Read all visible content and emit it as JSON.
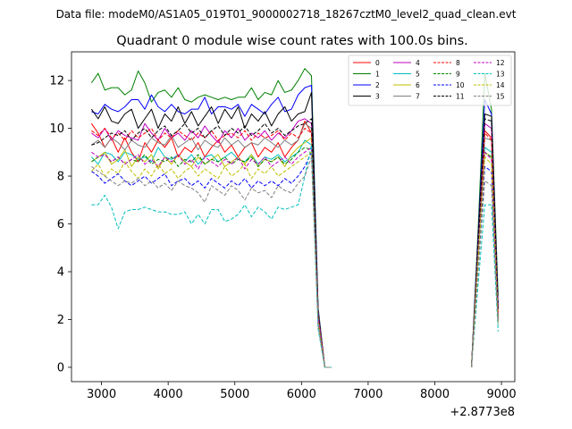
{
  "figure": {
    "suptitle": "Data file: modeM0/AS1A05_019T01_9000002718_18267cztM0_level2_quad_clean.evt"
  },
  "chart_data": {
    "type": "line",
    "title": "Quadrant 0 module wise count rates with 100.0s bins.",
    "xlabel": "",
    "ylabel": "",
    "x_offset_label": "+2.8773e8",
    "xlim": [
      2550,
      9200
    ],
    "ylim": [
      -0.6,
      13.2
    ],
    "xticks": [
      3000,
      4000,
      5000,
      6000,
      7000,
      8000,
      9000
    ],
    "xtick_labels": [
      "3000",
      "4000",
      "5000",
      "6000",
      "7000",
      "8000",
      "9000"
    ],
    "yticks": [
      0,
      2,
      4,
      6,
      8,
      10,
      12
    ],
    "ytick_labels": [
      "0",
      "2",
      "4",
      "6",
      "8",
      "10",
      "12"
    ],
    "legend_position": "top-right",
    "x_segment_1": [
      2850,
      2950,
      3050,
      3150,
      3250,
      3350,
      3450,
      3550,
      3650,
      3750,
      3850,
      3950,
      4050,
      4150,
      4250,
      4350,
      4450,
      4550,
      4650,
      4750,
      4850,
      4950,
      5050,
      5150,
      5250,
      5350,
      5450,
      5550,
      5650,
      5750,
      5850,
      5950,
      6050,
      6150,
      6250,
      6350,
      6450
    ],
    "x_segment_2": [
      8550,
      8650,
      8750,
      8850,
      8950
    ],
    "series": [
      {
        "name": "0",
        "color": "#ff0000",
        "dash": "solid",
        "seg1": [
          10.2,
          9.8,
          9.2,
          9.6,
          9.0,
          9.6,
          9.0,
          8.6,
          9.4,
          9.0,
          9.5,
          9.2,
          9.6,
          8.8,
          9.2,
          9.0,
          9.4,
          8.8,
          9.2,
          9.5,
          9.0,
          9.3,
          8.8,
          9.2,
          9.4,
          8.8,
          9.2,
          9.0,
          9.4,
          8.8,
          9.2,
          9.5,
          10.3,
          9.8,
          2.2,
          0.0,
          0.0
        ],
        "seg2": [
          0.0,
          5.0,
          9.9,
          9.6,
          2.2
        ]
      },
      {
        "name": "1",
        "color": "#008000",
        "dash": "solid",
        "seg1": [
          11.9,
          12.3,
          11.6,
          11.7,
          11.7,
          11.4,
          11.6,
          12.4,
          11.9,
          11.1,
          11.5,
          11.6,
          11.3,
          11.7,
          11.2,
          11.1,
          11.3,
          11.4,
          11.3,
          11.2,
          11.3,
          11.2,
          11.3,
          11.3,
          11.7,
          11.2,
          11.5,
          11.4,
          12.0,
          11.5,
          11.6,
          12.0,
          12.5,
          12.2,
          2.5,
          0.0,
          0.0
        ],
        "seg2": [
          0.0,
          5.8,
          12.3,
          10.8,
          3.0
        ]
      },
      {
        "name": "2",
        "color": "#0000ff",
        "dash": "solid",
        "seg1": [
          10.7,
          10.6,
          11.0,
          10.8,
          10.7,
          10.9,
          11.2,
          11.2,
          10.8,
          11.4,
          10.9,
          10.7,
          11.0,
          10.7,
          10.6,
          10.8,
          10.8,
          11.3,
          10.6,
          10.9,
          10.9,
          10.8,
          11.0,
          10.5,
          11.0,
          10.8,
          10.6,
          11.0,
          11.3,
          10.7,
          10.8,
          11.4,
          11.7,
          11.8,
          2.4,
          0.0,
          0.0
        ],
        "seg2": [
          0.0,
          5.5,
          11.2,
          10.6,
          2.6
        ]
      },
      {
        "name": "3",
        "color": "#000000",
        "dash": "solid",
        "seg1": [
          10.8,
          10.4,
          10.9,
          10.3,
          10.2,
          10.6,
          10.8,
          10.0,
          10.4,
          10.8,
          10.0,
          10.6,
          10.3,
          10.9,
          10.2,
          10.7,
          10.1,
          10.5,
          10.9,
          10.2,
          10.8,
          10.4,
          10.9,
          10.0,
          10.6,
          10.3,
          10.7,
          10.1,
          10.6,
          10.9,
          10.3,
          10.6,
          10.7,
          11.5,
          2.3,
          0.0,
          0.0
        ],
        "seg2": [
          0.0,
          5.4,
          10.6,
          10.5,
          2.5
        ]
      },
      {
        "name": "4",
        "color": "#bf00bf",
        "dash": "solid",
        "seg1": [
          9.8,
          9.6,
          10.0,
          9.5,
          9.9,
          9.7,
          9.6,
          9.5,
          10.2,
          9.8,
          9.5,
          10.0,
          9.6,
          9.8,
          9.5,
          9.9,
          9.6,
          10.1,
          9.7,
          9.4,
          9.9,
          9.6,
          10.0,
          9.5,
          9.8,
          9.6,
          9.9,
          9.5,
          9.8,
          9.6,
          9.9,
          10.3,
          10.4,
          10.2,
          2.3,
          0.0,
          0.0
        ],
        "seg2": [
          0.0,
          5.2,
          10.2,
          10.0,
          2.4
        ]
      },
      {
        "name": "5",
        "color": "#00bfbf",
        "dash": "solid",
        "seg1": [
          8.8,
          8.5,
          9.0,
          8.9,
          8.6,
          9.0,
          8.9,
          8.7,
          8.8,
          8.6,
          9.2,
          8.8,
          8.7,
          8.9,
          8.6,
          8.9,
          8.5,
          8.8,
          8.9,
          8.6,
          8.8,
          9.0,
          8.7,
          8.6,
          8.9,
          8.5,
          8.8,
          8.7,
          8.9,
          8.6,
          8.8,
          9.0,
          9.5,
          9.3,
          2.1,
          0.0,
          0.0
        ],
        "seg2": [
          0.0,
          4.8,
          9.2,
          9.0,
          2.0
        ]
      },
      {
        "name": "6",
        "color": "#bfbf00",
        "dash": "solid",
        "seg1": [
          8.6,
          8.8,
          9.0,
          8.5,
          8.7,
          9.1,
          8.4,
          8.8,
          8.6,
          8.9,
          8.3,
          8.8,
          8.5,
          8.9,
          8.6,
          8.4,
          8.8,
          8.5,
          8.7,
          8.9,
          8.4,
          8.6,
          8.8,
          8.5,
          8.9,
          8.4,
          8.7,
          8.6,
          8.8,
          8.4,
          8.9,
          9.2,
          9.4,
          9.6,
          2.1,
          0.0,
          0.0
        ],
        "seg2": [
          0.0,
          4.8,
          9.0,
          8.8,
          2.0
        ]
      },
      {
        "name": "7",
        "color": "#808080",
        "dash": "solid",
        "seg1": [
          9.3,
          9.5,
          9.2,
          9.6,
          9.4,
          9.1,
          9.5,
          9.3,
          9.2,
          9.6,
          9.4,
          9.3,
          9.7,
          9.2,
          9.4,
          9.6,
          9.1,
          9.5,
          9.3,
          9.2,
          9.6,
          9.3,
          9.5,
          9.2,
          9.4,
          9.3,
          9.6,
          9.4,
          9.2,
          9.5,
          9.3,
          9.5,
          10.2,
          10.0,
          2.2,
          0.0,
          0.0
        ],
        "seg2": [
          0.0,
          5.0,
          9.6,
          9.5,
          2.3
        ]
      },
      {
        "name": "8",
        "color": "#ff0000",
        "dash": "dashed",
        "seg1": [
          9.9,
          9.7,
          10.0,
          9.6,
          9.8,
          9.5,
          9.9,
          9.6,
          9.8,
          10.0,
          9.5,
          9.8,
          9.6,
          9.9,
          9.7,
          9.5,
          9.8,
          9.6,
          9.9,
          9.5,
          9.7,
          9.8,
          9.6,
          9.9,
          9.5,
          9.8,
          9.6,
          9.7,
          9.9,
          9.5,
          9.8,
          9.6,
          10.0,
          9.8,
          2.2,
          0.0,
          0.0
        ],
        "seg2": [
          0.0,
          5.0,
          9.8,
          9.5,
          2.3
        ]
      },
      {
        "name": "9",
        "color": "#008000",
        "dash": "dashed",
        "seg1": [
          8.6,
          8.8,
          8.9,
          8.6,
          8.8,
          8.5,
          8.7,
          8.6,
          8.9,
          8.5,
          8.7,
          8.6,
          8.8,
          8.4,
          8.7,
          8.6,
          8.9,
          8.5,
          8.7,
          8.6,
          8.8,
          8.5,
          8.7,
          8.6,
          8.8,
          8.4,
          8.7,
          8.6,
          8.8,
          8.5,
          8.7,
          9.0,
          9.2,
          9.1,
          2.0,
          0.0,
          0.0
        ],
        "seg2": [
          0.0,
          4.7,
          9.0,
          8.8,
          2.0
        ]
      },
      {
        "name": "10",
        "color": "#0000ff",
        "dash": "dashed",
        "seg1": [
          8.2,
          8.0,
          7.7,
          7.9,
          8.1,
          7.8,
          7.6,
          7.8,
          8.0,
          7.7,
          7.9,
          8.1,
          7.6,
          7.8,
          7.9,
          7.6,
          7.8,
          7.5,
          7.9,
          7.7,
          7.5,
          7.8,
          7.6,
          7.9,
          7.5,
          7.8,
          7.6,
          7.8,
          7.6,
          7.9,
          7.7,
          8.0,
          8.4,
          9.0,
          1.8,
          0.0,
          0.0
        ],
        "seg2": [
          0.0,
          4.3,
          8.4,
          8.2,
          1.9
        ]
      },
      {
        "name": "11",
        "color": "#000000",
        "dash": "dashed",
        "seg1": [
          9.3,
          9.4,
          9.6,
          9.8,
          9.7,
          9.9,
          9.5,
          9.8,
          10.0,
          9.6,
          9.9,
          10.1,
          9.7,
          9.9,
          10.2,
          9.8,
          10.0,
          9.6,
          9.9,
          10.1,
          9.7,
          10.0,
          9.8,
          10.1,
          9.7,
          9.9,
          10.2,
          9.8,
          10.0,
          9.7,
          9.9,
          10.1,
          10.2,
          10.4,
          2.3,
          0.0,
          0.0
        ],
        "seg2": [
          0.0,
          5.2,
          10.4,
          10.3,
          2.4
        ]
      },
      {
        "name": "12",
        "color": "#bf00bf",
        "dash": "dashed",
        "seg1": [
          9.0,
          8.8,
          8.9,
          8.6,
          8.8,
          8.5,
          8.7,
          8.9,
          8.5,
          8.7,
          8.4,
          8.8,
          8.6,
          8.9,
          8.5,
          8.7,
          8.3,
          8.8,
          8.6,
          8.4,
          8.7,
          8.5,
          8.8,
          8.3,
          8.7,
          8.5,
          8.8,
          8.4,
          8.6,
          8.8,
          8.5,
          8.8,
          9.0,
          9.2,
          2.1,
          0.0,
          0.0
        ],
        "seg2": [
          0.0,
          4.7,
          9.0,
          8.7,
          2.0
        ]
      },
      {
        "name": "13",
        "color": "#00bfbf",
        "dash": "dashed",
        "seg1": [
          6.8,
          6.8,
          7.2,
          6.7,
          5.8,
          6.5,
          6.6,
          6.6,
          6.7,
          6.6,
          6.5,
          6.5,
          6.4,
          6.4,
          6.5,
          6.0,
          6.4,
          6.0,
          6.6,
          6.6,
          6.1,
          6.2,
          6.4,
          6.8,
          6.3,
          6.7,
          6.5,
          6.2,
          6.7,
          6.6,
          6.7,
          6.8,
          8.0,
          9.3,
          1.6,
          0.0,
          0.0
        ],
        "seg2": [
          0.0,
          3.5,
          6.8,
          6.8,
          1.5
        ]
      },
      {
        "name": "14",
        "color": "#bfbf00",
        "dash": "dashed",
        "seg1": [
          8.2,
          8.5,
          8.0,
          8.3,
          8.1,
          8.6,
          8.2,
          7.9,
          8.3,
          8.0,
          8.5,
          8.1,
          8.3,
          7.9,
          8.2,
          8.4,
          8.0,
          8.3,
          8.1,
          7.9,
          8.4,
          8.0,
          8.2,
          8.5,
          7.9,
          8.3,
          8.1,
          8.4,
          8.0,
          8.2,
          8.4,
          8.6,
          8.8,
          9.0,
          1.9,
          0.0,
          0.0
        ],
        "seg2": [
          0.0,
          4.5,
          8.8,
          8.5,
          1.9
        ]
      },
      {
        "name": "15",
        "color": "#808080",
        "dash": "dashed",
        "seg1": [
          8.4,
          8.2,
          8.0,
          7.8,
          7.6,
          7.8,
          7.7,
          7.9,
          7.6,
          7.8,
          7.5,
          7.7,
          7.4,
          7.8,
          7.6,
          7.5,
          7.3,
          6.9,
          7.6,
          7.4,
          7.2,
          7.6,
          7.4,
          7.0,
          7.5,
          7.3,
          7.4,
          7.1,
          7.6,
          7.4,
          7.3,
          7.7,
          8.0,
          8.8,
          1.7,
          0.0,
          0.0
        ],
        "seg2": [
          0.0,
          4.0,
          7.8,
          7.6,
          1.8
        ]
      }
    ]
  }
}
